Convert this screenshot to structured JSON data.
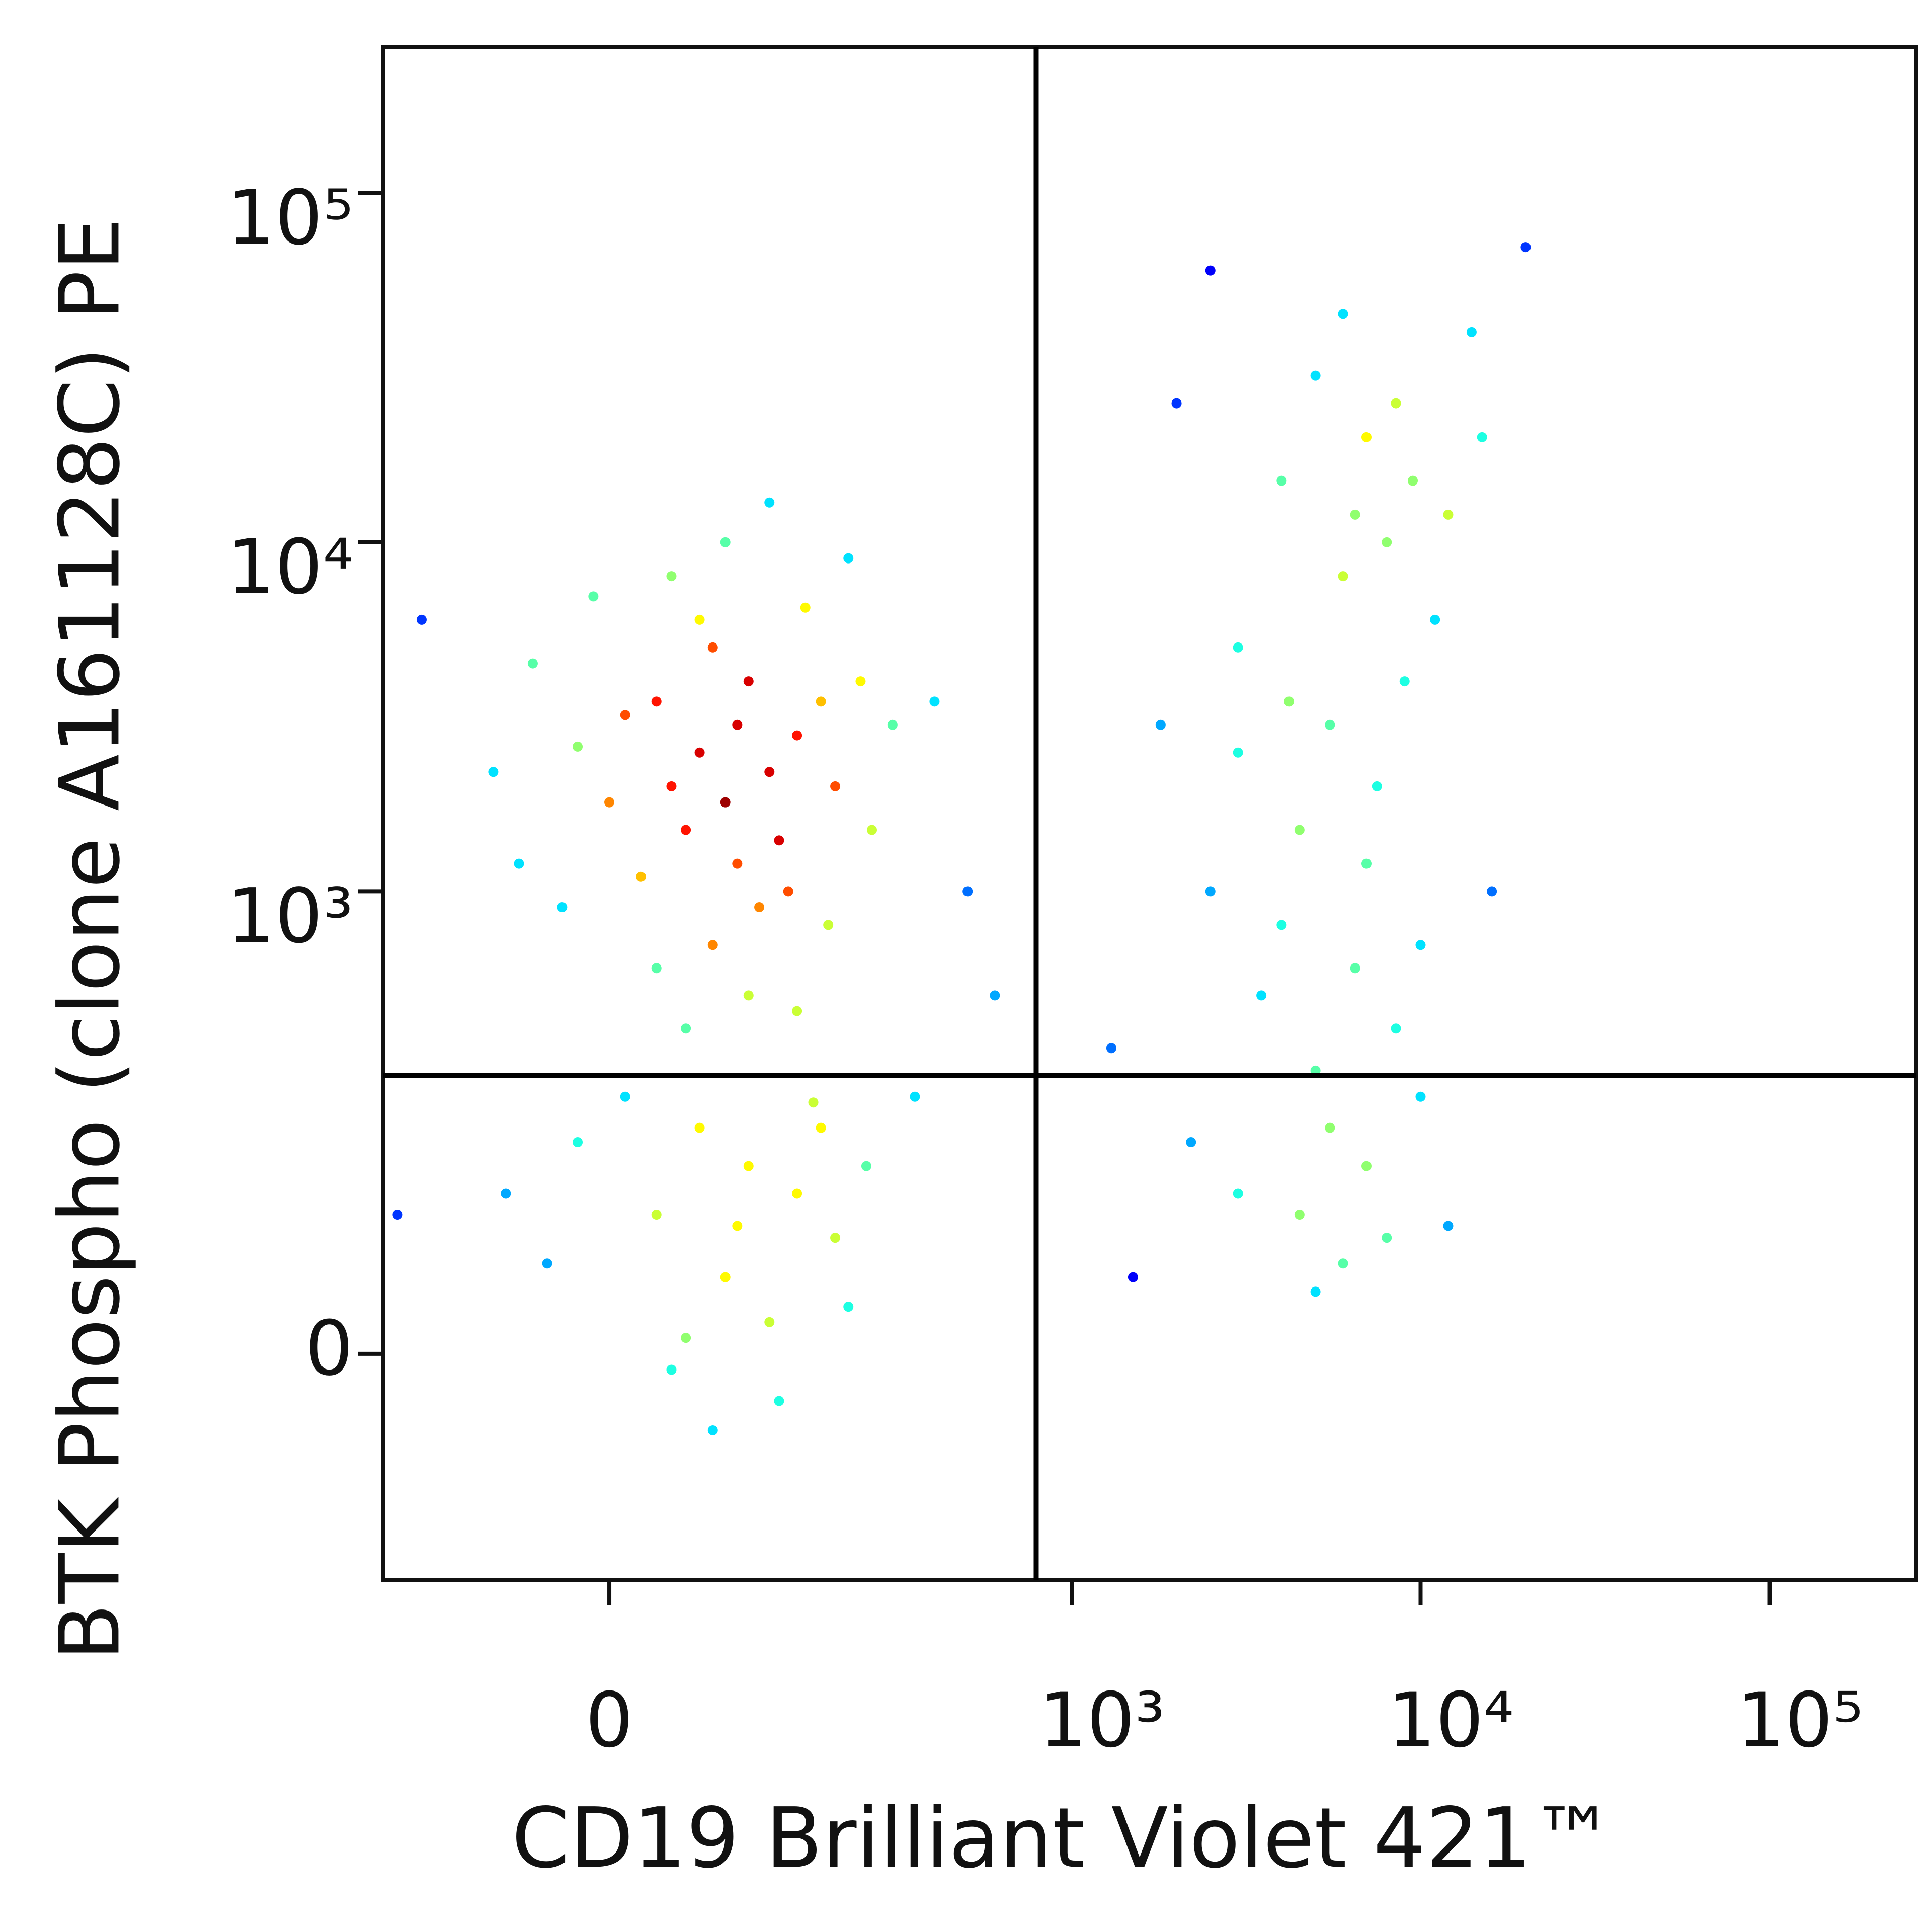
{
  "chart_data": {
    "type": "scatter",
    "x_label": "CD19 Brilliant Violet 421™",
    "y_label": "BTK Phospho (clone A161128C) PE",
    "scale": "biexponential",
    "xlim": [
      -200,
      262144
    ],
    "ylim": [
      -200,
      262144
    ],
    "xticks": [
      0,
      {
        "value": 1000,
        "label": "10³"
      },
      {
        "value": 10000,
        "label": "10⁴"
      },
      {
        "value": 100000,
        "label": "10⁵"
      }
    ],
    "yticks": [
      0,
      {
        "value": 1000,
        "label": "10³"
      },
      {
        "value": 10000,
        "label": "10⁴"
      },
      {
        "value": 100000,
        "label": "10⁵"
      }
    ],
    "gates": {
      "x": 790,
      "y": 290
    },
    "color": "density",
    "x": [
      60,
      90,
      40,
      120,
      80,
      30,
      150,
      100,
      50,
      -20,
      70,
      130,
      10,
      180,
      90,
      60,
      -50,
      200,
      110,
      20,
      160,
      -80,
      240,
      40,
      80,
      -10,
      140,
      70,
      190,
      30,
      260,
      -60,
      100,
      0,
      220,
      120,
      -30,
      300,
      50,
      150,
      60,
      100,
      30,
      150,
      80,
      -20,
      200,
      120,
      40,
      170,
      90,
      -40,
      250,
      10,
      130,
      70,
      220,
      -70,
      180,
      50,
      5000,
      7000,
      4000,
      8000,
      6000,
      3000,
      9000,
      5500,
      7500,
      4500,
      2500,
      10000,
      6500,
      3500,
      8500,
      5000,
      12000,
      6000,
      2000,
      14000,
      7000,
      4000,
      9500,
      3000,
      11000,
      5500,
      7000,
      4500,
      8000,
      3000,
      6000,
      10000,
      2200,
      12000,
      5000,
      1500,
      1800,
      15000,
      2500,
      20000,
      1300,
      16000,
      6500,
      8500,
      4200,
      -150,
      -180,
      400,
      500,
      350,
      600
    ],
    "y": [
      2500,
      3000,
      2000,
      2200,
      1800,
      3500,
      2800,
      4000,
      1500,
      2600,
      5000,
      1400,
      3200,
      3500,
      1200,
      6000,
      4500,
      2000,
      900,
      1100,
      6500,
      2200,
      4000,
      8000,
      10000,
      7000,
      1000,
      700,
      800,
      600,
      1500,
      1200,
      500,
      1800,
      9000,
      13000,
      900,
      3000,
      400,
      450,
      200,
      150,
      100,
      120,
      50,
      180,
      80,
      20,
      -10,
      240,
      90,
      60,
      150,
      250,
      -30,
      -50,
      30,
      120,
      200,
      10,
      30000,
      20000,
      15000,
      10000,
      8000,
      5000,
      4000,
      3000,
      2000,
      1500,
      1000,
      700,
      600,
      500,
      400,
      300,
      12000,
      45000,
      25000,
      40000,
      1200,
      800,
      15000,
      2500,
      6000,
      200,
      150,
      100,
      80,
      120,
      60,
      250,
      180,
      90,
      40,
      50,
      3000,
      20000,
      60000,
      70000,
      350,
      1000,
      12000,
      25000,
      3500,
      6000,
      100,
      3500,
      1000,
      250,
      500
    ]
  }
}
